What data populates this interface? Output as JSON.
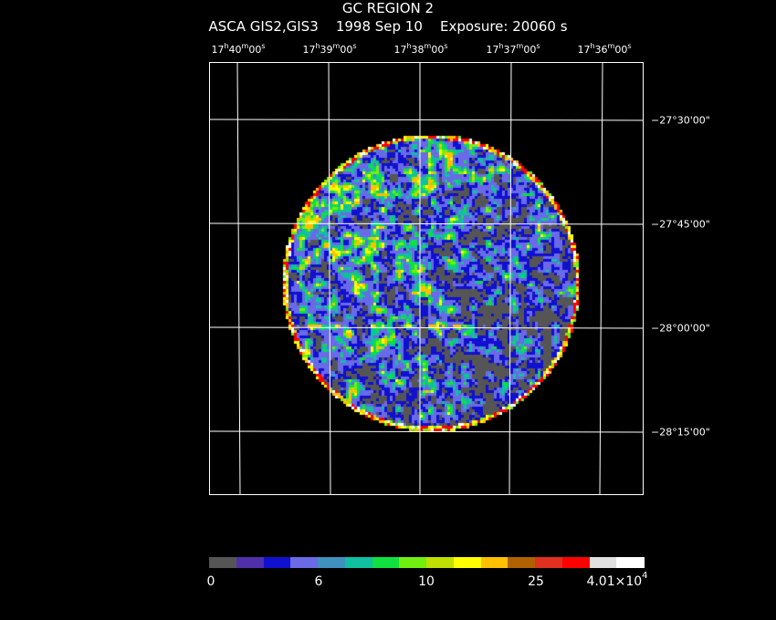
{
  "title": {
    "line1": "GC REGION 2",
    "line2": "ASCA GIS2,GIS3    1998 Sep 10    Exposure: 20060 s"
  },
  "ra_ticks": [
    {
      "h": "17",
      "m": "40",
      "s": "00"
    },
    {
      "h": "17",
      "m": "39",
      "s": "00"
    },
    {
      "h": "17",
      "m": "38",
      "s": "00"
    },
    {
      "h": "17",
      "m": "37",
      "s": "00"
    },
    {
      "h": "17",
      "m": "36",
      "s": "00"
    }
  ],
  "dec_ticks": [
    "−27°30'00\"",
    "−27°45'00\"",
    "−28°00'00\"",
    "−28°15'00\""
  ],
  "colorbar": {
    "colors": [
      "#555555",
      "#5030a8",
      "#1010d0",
      "#6a6ae8",
      "#4090c0",
      "#10c0a0",
      "#10e040",
      "#70f010",
      "#c0e000",
      "#ffff00",
      "#ffc000",
      "#b06000",
      "#e03020",
      "#ff0000",
      "#e0e0e0",
      "#ffffff"
    ],
    "labels": [
      "0",
      "6",
      "10",
      "25"
    ],
    "max_label_base": "4.01×10",
    "max_label_exp": "4"
  }
}
